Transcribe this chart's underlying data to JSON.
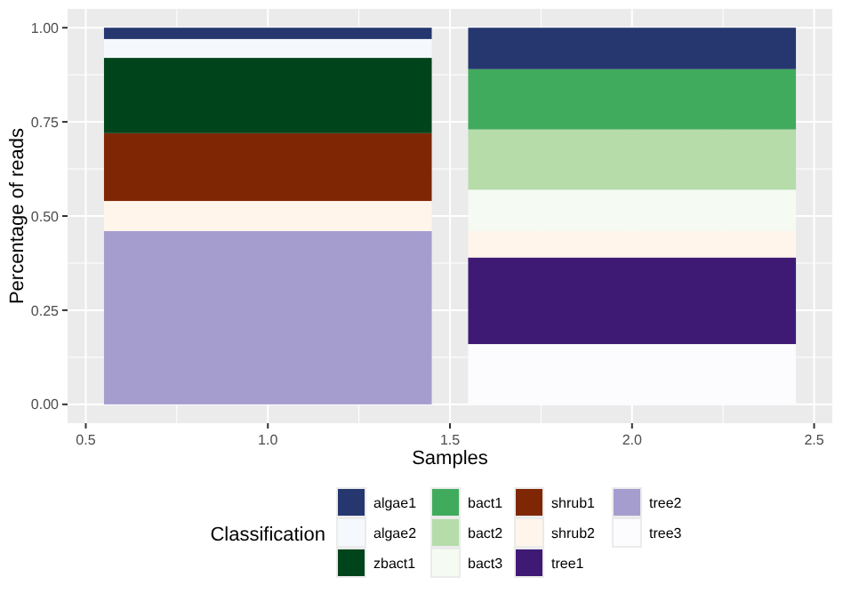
{
  "chart_data": {
    "type": "bar",
    "stacked": true,
    "xlabel": "Samples",
    "ylabel": "Percentage of reads",
    "legend_title": "Classification",
    "legend": "bottom",
    "grid": true,
    "x": [
      1,
      2
    ],
    "xlim": [
      0.45,
      2.55
    ],
    "xticks": [
      {
        "value": 0.5,
        "label": "0.5"
      },
      {
        "value": 1,
        "label": "1.0"
      },
      {
        "value": 1.5,
        "label": "1.5"
      },
      {
        "value": 2,
        "label": "2.0"
      },
      {
        "value": 2.5,
        "label": "2.5"
      }
    ],
    "ylim": [
      -0.05,
      1.05
    ],
    "yticks": [
      {
        "value": 0,
        "label": "0.00"
      },
      {
        "value": 0.25,
        "label": "0.25"
      },
      {
        "value": 0.5,
        "label": "0.50"
      },
      {
        "value": 0.75,
        "label": "0.75"
      },
      {
        "value": 1,
        "label": "1.00"
      }
    ],
    "series": [
      {
        "name": "tree3",
        "color": "#fcfbfd",
        "values": [
          0,
          0.16
        ]
      },
      {
        "name": "tree2",
        "color": "#a59dce",
        "values": [
          0.46,
          0
        ]
      },
      {
        "name": "tree1",
        "color": "#3f1a75",
        "values": [
          0,
          0.23
        ]
      },
      {
        "name": "shrub2",
        "color": "#fff5eb",
        "values": [
          0.08,
          0.07
        ]
      },
      {
        "name": "shrub1",
        "color": "#7f2704",
        "values": [
          0.18,
          0
        ]
      },
      {
        "name": "bact3",
        "color": "#f5fbf2",
        "values": [
          0,
          0.11
        ]
      },
      {
        "name": "bact2",
        "color": "#b5dca9",
        "values": [
          0,
          0.16
        ]
      },
      {
        "name": "bact1",
        "color": "#41ab5d",
        "values": [
          0,
          0.16
        ]
      },
      {
        "name": "zbact1",
        "color": "#00441b",
        "values": [
          0.2,
          0
        ]
      },
      {
        "name": "algae2",
        "color": "#f5f9fd",
        "values": [
          0.05,
          0
        ]
      },
      {
        "name": "algae1",
        "color": "#26376f",
        "values": [
          0.03,
          0.11
        ]
      }
    ]
  }
}
